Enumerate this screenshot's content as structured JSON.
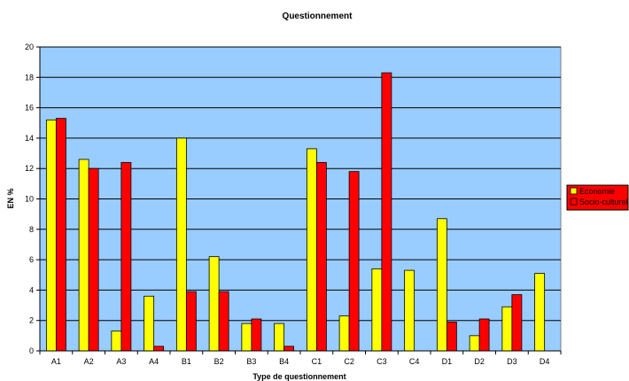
{
  "chart_data": {
    "type": "bar",
    "title": "Questionnement",
    "xlabel": "Type de questionnement",
    "ylabel": "EN %",
    "ylim": [
      0,
      20
    ],
    "yticks": [
      0,
      2,
      4,
      6,
      8,
      10,
      12,
      14,
      16,
      18,
      20
    ],
    "grid": true,
    "legend_position": "right",
    "plot_background": "#99ccff",
    "categories": [
      "A1",
      "A2",
      "A3",
      "A4",
      "B1",
      "B2",
      "B3",
      "B4",
      "C1",
      "C2",
      "C3",
      "C4",
      "D1",
      "D2",
      "D3",
      "D4"
    ],
    "series": [
      {
        "name": "Economie",
        "color": "#ffff00",
        "values": [
          15.2,
          12.6,
          1.3,
          3.6,
          14.0,
          6.2,
          1.8,
          1.8,
          13.3,
          2.3,
          5.4,
          5.3,
          8.7,
          1.0,
          2.9,
          5.1
        ]
      },
      {
        "name": "Socio-culturel",
        "color": "#ff0000",
        "values": [
          15.3,
          12.0,
          12.4,
          0.3,
          3.9,
          3.9,
          2.1,
          0.3,
          12.4,
          11.8,
          18.3,
          0,
          1.9,
          2.1,
          3.7,
          0
        ]
      }
    ]
  }
}
